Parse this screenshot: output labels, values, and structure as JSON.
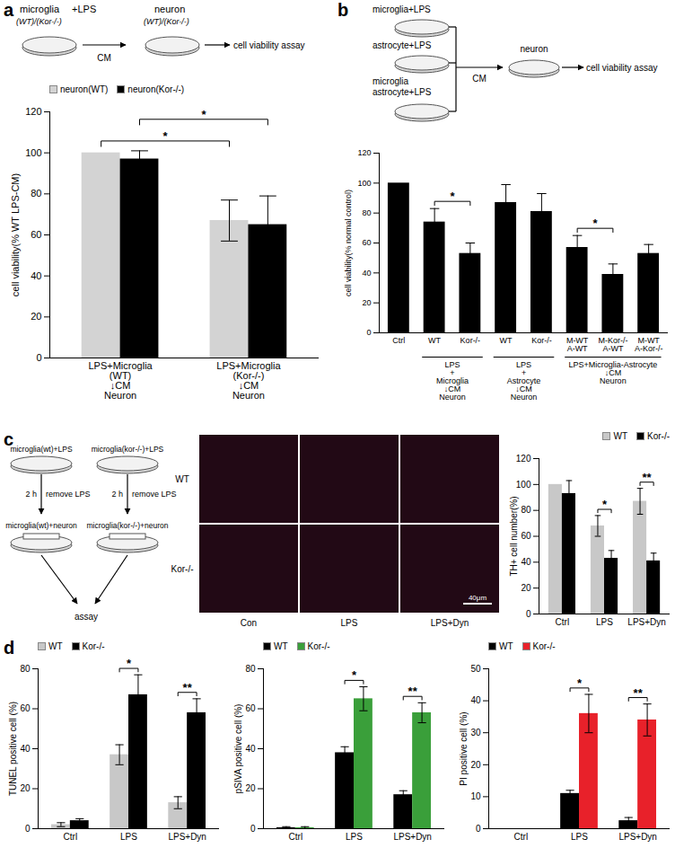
{
  "chart_data": [
    {
      "panel": "a",
      "type": "bar",
      "schematic": {
        "source": "microglia",
        "treatment": "+LPS",
        "source_genotype": "(WT)/(Kor-/-)",
        "transfer": "CM",
        "target": "neuron",
        "target_genotype": "(WT)/(Kor-/-)",
        "assay": "cell viability assay"
      },
      "y_label": "cell viability(% WT LPS-CM)",
      "categories": [
        "LPS+Microglia\n(WT)\n↓CM\nNeuron",
        "LPS+Microglia\n(Kor-/-)\n↓CM\nNeuron"
      ],
      "series": [
        {
          "name": "neuron(WT)",
          "color": "#d3d3d3",
          "values": [
            100,
            67
          ],
          "errors": [
            0,
            10
          ]
        },
        {
          "name": "neuron(Kor-/-)",
          "color": "#000000",
          "values": [
            97,
            65
          ],
          "errors": [
            4,
            14
          ]
        }
      ],
      "ylim": [
        0,
        120
      ],
      "yticks": [
        0,
        20,
        40,
        60,
        80,
        100,
        120
      ],
      "legend": "top-left",
      "significance": [
        {
          "from": [
            0,
            0
          ],
          "to": [
            1,
            0
          ],
          "label": "*"
        },
        {
          "from": [
            0,
            1
          ],
          "to": [
            1,
            1
          ],
          "label": "*"
        }
      ]
    },
    {
      "panel": "b",
      "type": "bar",
      "schematic": {
        "wells": [
          "microglia+LPS",
          "astrocyte+LPS",
          "microglia\nastrocyte+LPS"
        ],
        "transfer": "CM",
        "target": "neuron",
        "assay": "cell viability assay"
      },
      "y_label": "cell viability(% normal control)",
      "categories": [
        "Ctrl",
        "WT",
        "Kor-/-",
        "WT",
        "Kor-/-",
        "M-WT\nA-WT",
        "M-Kor-/-\nA-WT",
        "M-WT\nA-Kor-/-"
      ],
      "groups": [
        {
          "label": "LPS\n+\nMicroglia\n↓CM\nNeuron",
          "from": 1,
          "to": 2
        },
        {
          "label": "LPS\n+\nAstrocyte\n↓CM\nNeuron",
          "from": 3,
          "to": 4
        },
        {
          "label": "LPS+Microglia-Astrocyte\n↓CM\nNeuron",
          "from": 5,
          "to": 7
        }
      ],
      "color": "#000000",
      "values": [
        100,
        74,
        53,
        87,
        81,
        57,
        39,
        53
      ],
      "errors": [
        0,
        9,
        7,
        12,
        12,
        8,
        7,
        6
      ],
      "ylim": [
        0,
        120
      ],
      "yticks": [
        0,
        20,
        40,
        60,
        80,
        100,
        120
      ],
      "significance": [
        {
          "from": [
            1,
            0
          ],
          "to": [
            2,
            0
          ],
          "label": "*"
        },
        {
          "from": [
            5,
            0
          ],
          "to": [
            6,
            0
          ],
          "label": "*"
        }
      ]
    },
    {
      "panel": "c",
      "type": "bar",
      "schematic": {
        "wells_top": [
          "microglia(wt)+LPS",
          "microglia(kor-/-)+LPS"
        ],
        "step_time": "2 h",
        "step_action": "remove LPS",
        "wells_bottom": [
          "microglia(wt)+neuron",
          "microglia(kor-/-)+neuron"
        ],
        "assay": "assay"
      },
      "images": {
        "rows": [
          "WT",
          "Kor-/-"
        ],
        "columns": [
          "Con",
          "LPS",
          "LPS+Dyn"
        ],
        "scale_bar": "40μm"
      },
      "y_label": "TH+ cell number(%)",
      "categories": [
        "Ctrl",
        "LPS",
        "LPS+Dyn"
      ],
      "series": [
        {
          "name": "WT",
          "color": "#c8c8c8",
          "values": [
            100,
            68,
            87
          ],
          "errors": [
            0,
            8,
            10
          ]
        },
        {
          "name": "Kor-/-",
          "color": "#000000",
          "values": [
            93,
            43,
            41
          ],
          "errors": [
            10,
            6,
            6
          ]
        }
      ],
      "ylim": [
        0,
        120
      ],
      "yticks": [
        0,
        20,
        40,
        60,
        80,
        100,
        120
      ],
      "legend": "top-right",
      "significance": [
        {
          "from": [
            1,
            0
          ],
          "to": [
            1,
            1
          ],
          "label": "*"
        },
        {
          "from": [
            2,
            0
          ],
          "to": [
            2,
            1
          ],
          "label": "**"
        }
      ]
    },
    {
      "panel": "d",
      "type": "bar",
      "y_label": "TUNEL positive cell (%)",
      "categories": [
        "Ctrl",
        "LPS",
        "LPS+Dyn"
      ],
      "series": [
        {
          "name": "WT",
          "color": "#c8c8c8",
          "values": [
            2,
            37,
            13
          ],
          "errors": [
            1,
            5,
            3
          ]
        },
        {
          "name": "Kor-/-",
          "color": "#000000",
          "values": [
            4,
            67,
            58
          ],
          "errors": [
            1,
            10,
            7
          ]
        }
      ],
      "ylim": [
        0,
        80
      ],
      "yticks": [
        0,
        20,
        40,
        60,
        80
      ],
      "legend": "top-left",
      "significance": [
        {
          "from": [
            1,
            0
          ],
          "to": [
            1,
            1
          ],
          "label": "*"
        },
        {
          "from": [
            2,
            0
          ],
          "to": [
            2,
            1
          ],
          "label": "**"
        }
      ]
    },
    {
      "type": "bar",
      "y_label": "pSIVA positive cell (%)",
      "categories": [
        "Ctrl",
        "LPS",
        "LPS+Dyn"
      ],
      "series": [
        {
          "name": "WT",
          "color": "#000000",
          "values": [
            0.5,
            38,
            17
          ],
          "errors": [
            0.5,
            3,
            2
          ]
        },
        {
          "name": "Kor-/-",
          "color": "#3a9f3a",
          "values": [
            0.5,
            65,
            58
          ],
          "errors": [
            0.5,
            6,
            5
          ]
        }
      ],
      "ylim": [
        0,
        80
      ],
      "yticks": [
        0,
        20,
        40,
        60,
        80
      ],
      "legend": "top-left",
      "significance": [
        {
          "from": [
            1,
            0
          ],
          "to": [
            1,
            1
          ],
          "label": "*"
        },
        {
          "from": [
            2,
            0
          ],
          "to": [
            2,
            1
          ],
          "label": "**"
        }
      ]
    },
    {
      "type": "bar",
      "y_label": "PI positive cell (%)",
      "categories": [
        "Ctrl",
        "LPS",
        "LPS+Dyn"
      ],
      "series": [
        {
          "name": "WT",
          "color": "#000000",
          "values": [
            0,
            11,
            2.5
          ],
          "errors": [
            0,
            1,
            1
          ]
        },
        {
          "name": "Kor-/-",
          "color": "#e8212a",
          "values": [
            0,
            36,
            34
          ],
          "errors": [
            0,
            6,
            5
          ]
        }
      ],
      "ylim": [
        0,
        50
      ],
      "yticks": [
        0,
        10,
        20,
        30,
        40,
        50
      ],
      "legend": "top-left",
      "significance": [
        {
          "from": [
            1,
            0
          ],
          "to": [
            1,
            1
          ],
          "label": "*"
        },
        {
          "from": [
            2,
            0
          ],
          "to": [
            2,
            1
          ],
          "label": "**"
        }
      ]
    }
  ]
}
